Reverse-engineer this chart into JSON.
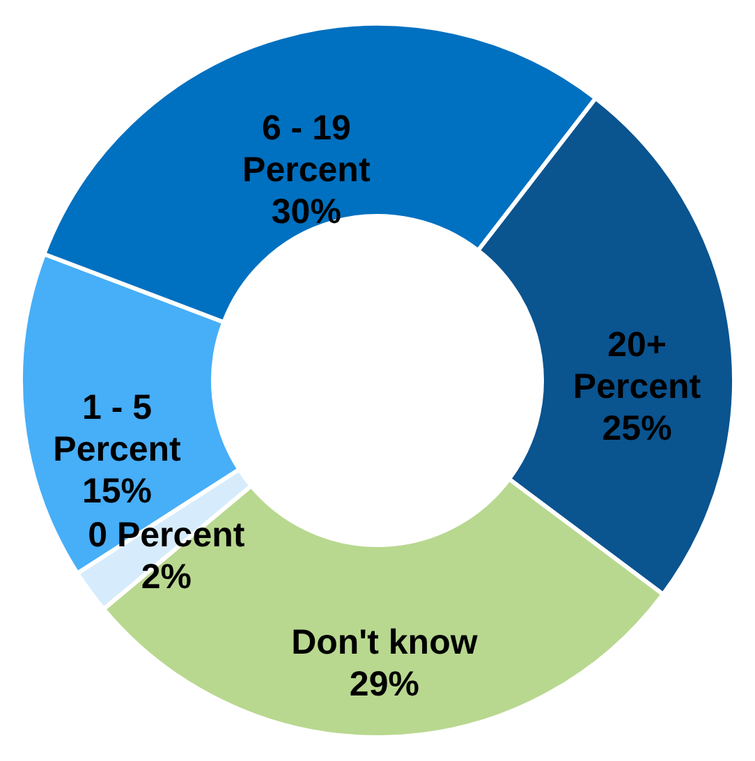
{
  "chart_data": {
    "type": "donut",
    "categories": [
      "20+ Percent",
      "Don't know",
      "0 Percent",
      "1 - 5 Percent",
      "6 - 19 Percent"
    ],
    "values": [
      25,
      29,
      2,
      15,
      30
    ],
    "value_labels": [
      "25%",
      "29%",
      "2%",
      "15%",
      "30%"
    ],
    "colors": [
      "#0a5490",
      "#b8d88f",
      "#d6ecfc",
      "#47aef8",
      "#0070c0"
    ]
  }
}
